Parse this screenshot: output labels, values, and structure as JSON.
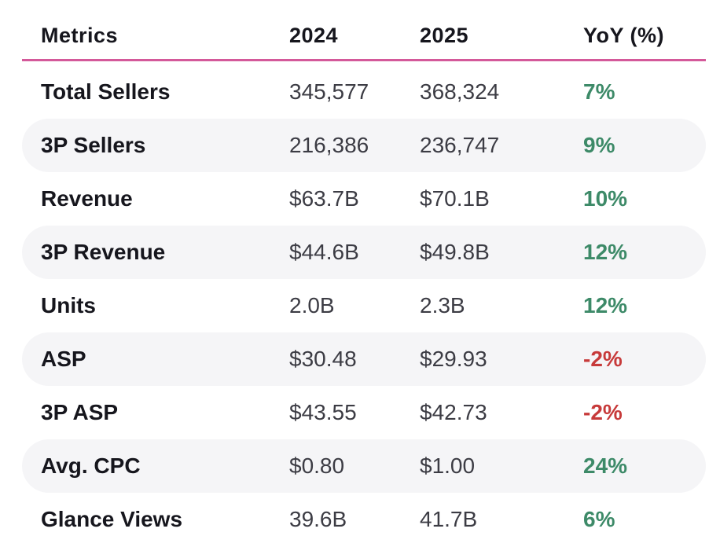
{
  "chart_data": {
    "type": "table",
    "columns": [
      "Metrics",
      "2024",
      "2025",
      "YoY (%)"
    ],
    "rows": [
      {
        "metric": "Total Sellers",
        "v2024": "345,577",
        "v2025": "368,324",
        "yoy": "7%",
        "yoy_value": 7
      },
      {
        "metric": "3P Sellers",
        "v2024": "216,386",
        "v2025": "236,747",
        "yoy": "9%",
        "yoy_value": 9
      },
      {
        "metric": "Revenue",
        "v2024": "$63.7B",
        "v2025": "$70.1B",
        "yoy": "10%",
        "yoy_value": 10
      },
      {
        "metric": "3P Revenue",
        "v2024": "$44.6B",
        "v2025": "$49.8B",
        "yoy": "12%",
        "yoy_value": 12
      },
      {
        "metric": "Units",
        "v2024": "2.0B",
        "v2025": "2.3B",
        "yoy": "12%",
        "yoy_value": 12
      },
      {
        "metric": "ASP",
        "v2024": "$30.48",
        "v2025": "$29.93",
        "yoy": "-2%",
        "yoy_value": -2
      },
      {
        "metric": "3P ASP",
        "v2024": "$43.55",
        "v2025": "$42.73",
        "yoy": "-2%",
        "yoy_value": -2
      },
      {
        "metric": "Avg. CPC",
        "v2024": "$0.80",
        "v2025": "$1.00",
        "yoy": "24%",
        "yoy_value": 24
      },
      {
        "metric": "Glance Views",
        "v2024": "39.6B",
        "v2025": "41.7B",
        "yoy": "6%",
        "yoy_value": 6
      }
    ]
  },
  "colors": {
    "header_rule": "#d4599a",
    "positive": "#3d8a68",
    "negative": "#c73a3a",
    "row_shade": "#f5f5f7"
  }
}
